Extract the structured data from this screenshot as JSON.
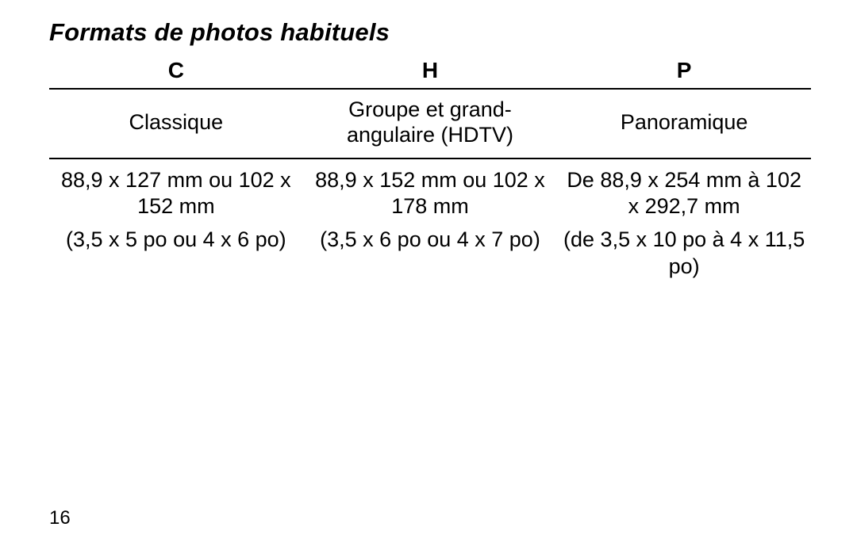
{
  "title": "Formats de photos habituels",
  "pageNumber": "16",
  "table": {
    "borderColor": "#000000",
    "borderWidth": 2,
    "header": {
      "c": "C",
      "h": "H",
      "p": "P"
    },
    "desc": {
      "c": "Classique",
      "h": "Groupe et grand-angulaire (HDTV)",
      "p": "Panoramique"
    },
    "mm": {
      "c": "88,9 x 127 mm ou 102 x 152 mm",
      "h": "88,9 x 152 mm ou 102 x 178 mm",
      "p": "De 88,9 x 254 mm à 102 x 292,7 mm"
    },
    "po": {
      "c": "(3,5 x 5 po ou 4 x 6 po)",
      "h": "(3,5 x 6 po ou 4 x 7 po)",
      "p": "(de 3,5 x 10 po à 4 x 11,5 po)"
    }
  }
}
